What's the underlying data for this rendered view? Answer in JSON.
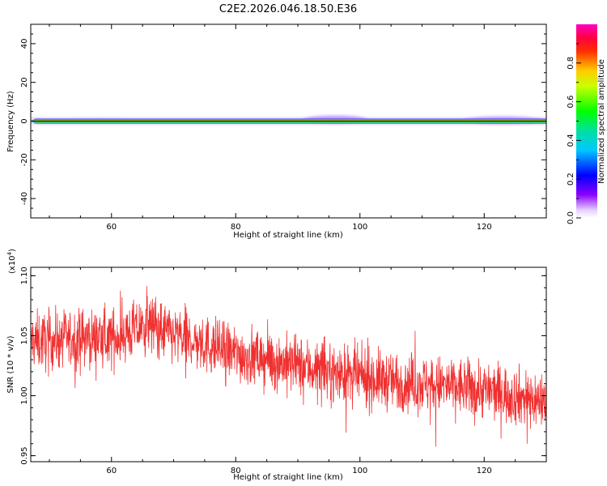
{
  "title": "C2E2.2026.046.18.50.E36",
  "chart_data": [
    {
      "type": "heatmap",
      "xlabel": "Height of straight line (km)",
      "ylabel": "Frequency (Hz)",
      "xlim": [
        47,
        130
      ],
      "ylim": [
        -50,
        50
      ],
      "xticks": [
        60,
        80,
        100,
        120
      ],
      "yticks": [
        -40,
        -20,
        0,
        20,
        40
      ],
      "grid": false,
      "colorbar": {
        "label": "Normalized spectral amplitude",
        "range": [
          0,
          1
        ],
        "ticks": [
          "0.0",
          "0.2",
          "0.4",
          "0.6",
          "0.8"
        ]
      },
      "band_note_freq_hz": 0,
      "band_halfwidth_hz": [
        0.8,
        2.5
      ],
      "band_peak_amplitude": 1.0
    },
    {
      "type": "line",
      "xlabel": "Height of straight line (km)",
      "ylabel": "SNR (10 * v/v)",
      "y_multiplier": "(x10",
      "y_multiplier_exp": "4",
      "y_multiplier_close": ")",
      "xlim": [
        47,
        130
      ],
      "ylim": [
        0.945,
        1.107
      ],
      "xticks": [
        60,
        80,
        100,
        120
      ],
      "yticks": [
        "0.95",
        "1.00",
        "1.05",
        "1.10"
      ],
      "series": [
        {
          "color": "#f03030",
          "trend_x": [
            47,
            55,
            60,
            64,
            66,
            70,
            80,
            90,
            100,
            110,
            120,
            130
          ],
          "trend_y": [
            1.045,
            1.048,
            1.048,
            1.055,
            1.06,
            1.05,
            1.035,
            1.025,
            1.015,
            1.01,
            1.005,
            0.995
          ]
        }
      ]
    }
  ]
}
